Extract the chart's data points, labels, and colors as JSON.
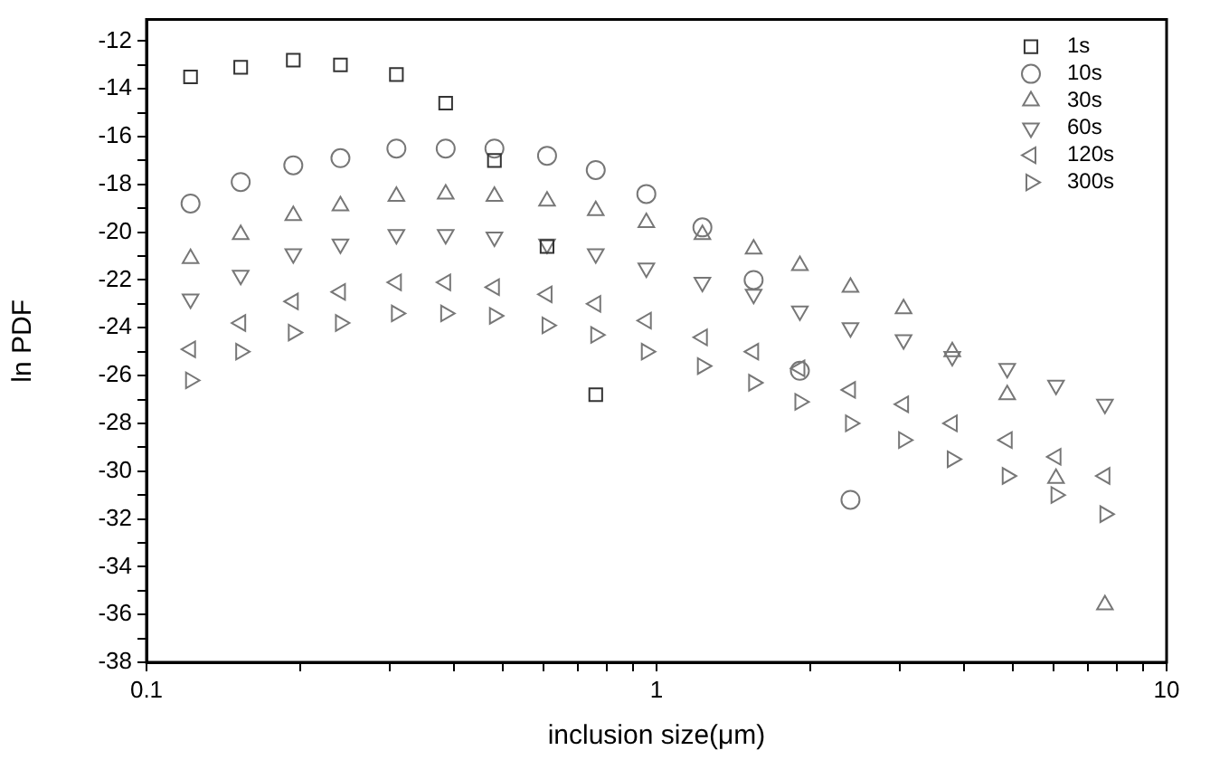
{
  "chart_data": {
    "type": "scatter",
    "xlabel": "inclusion size(μm)",
    "ylabel": "ln PDF",
    "log": "x",
    "grid": false,
    "legend": "top right",
    "xlim": [
      0.1,
      10
    ],
    "xticks": [
      0.1,
      {
        "value": 0.2,
        "label": null
      },
      {
        "value": 0.3,
        "label": null
      },
      {
        "value": 0.4,
        "label": null
      },
      {
        "value": 0.5,
        "label": null
      },
      {
        "value": 0.6,
        "label": null
      },
      {
        "value": 0.7,
        "label": null
      },
      {
        "value": 0.8,
        "label": null
      },
      {
        "value": 0.9,
        "label": null
      },
      1,
      {
        "value": 2,
        "label": null
      },
      {
        "value": 3,
        "label": null
      },
      {
        "value": 4,
        "label": null
      },
      {
        "value": 5,
        "label": null
      },
      {
        "value": 6,
        "label": null
      },
      {
        "value": 7,
        "label": null
      },
      {
        "value": 8,
        "label": null
      },
      {
        "value": 9,
        "label": null
      },
      10
    ],
    "ylim": [
      -38,
      -11.1
    ],
    "yticks": [
      -12,
      {
        "value": -13,
        "label": null
      },
      -14,
      {
        "value": -15,
        "label": null
      },
      -16,
      {
        "value": -17,
        "label": null
      },
      -18,
      {
        "value": -19,
        "label": null
      },
      -20,
      {
        "value": -21,
        "label": null
      },
      -22,
      {
        "value": -23,
        "label": null
      },
      -24,
      {
        "value": -25,
        "label": null
      },
      -26,
      {
        "value": -27,
        "label": null
      },
      -28,
      {
        "value": -29,
        "label": null
      },
      -30,
      {
        "value": -31,
        "label": null
      },
      -32,
      {
        "value": -33,
        "label": null
      },
      -34,
      {
        "value": -35,
        "label": null
      },
      -36,
      {
        "value": -37,
        "label": null
      },
      -38
    ],
    "series": [
      {
        "name": "1s",
        "color": "#333333",
        "marker": "square",
        "x": [
          0.122,
          0.153,
          0.194,
          0.24,
          0.309,
          0.386,
          0.481,
          0.61,
          0.76
        ],
        "values": [
          -13.5,
          -13.1,
          -12.8,
          -13.0,
          -13.4,
          -14.6,
          -17.0,
          -20.6,
          -26.8
        ]
      },
      {
        "name": "10s",
        "color": "#777777",
        "marker": "circle",
        "x": [
          0.122,
          0.153,
          0.194,
          0.24,
          0.309,
          0.386,
          0.481,
          0.61,
          0.76,
          0.955,
          1.23,
          1.55,
          1.91,
          2.4
        ],
        "values": [
          -18.8,
          -17.9,
          -17.2,
          -16.9,
          -16.5,
          -16.5,
          -16.5,
          -16.8,
          -17.4,
          -18.4,
          -19.8,
          -22.0,
          -25.8,
          -31.2
        ]
      },
      {
        "name": "30s",
        "color": "#777777",
        "marker": "triangle",
        "x": [
          0.122,
          0.153,
          0.194,
          0.24,
          0.309,
          0.386,
          0.481,
          0.61,
          0.76,
          0.955,
          1.23,
          1.55,
          1.91,
          2.4,
          3.05,
          3.8,
          4.87,
          6.07,
          7.57
        ],
        "values": [
          -21.1,
          -20.1,
          -19.3,
          -18.9,
          -18.5,
          -18.4,
          -18.5,
          -18.7,
          -19.1,
          -19.6,
          -20.1,
          -20.7,
          -21.4,
          -22.3,
          -23.2,
          -25.0,
          -26.8,
          -30.3,
          -35.6
        ]
      },
      {
        "name": "60s",
        "color": "#777777",
        "marker": "triangle-down",
        "x": [
          0.122,
          0.153,
          0.194,
          0.24,
          0.309,
          0.386,
          0.481,
          0.61,
          0.76,
          0.955,
          1.23,
          1.55,
          1.91,
          2.4,
          3.05,
          3.8,
          4.87,
          6.07,
          7.57
        ],
        "values": [
          -22.8,
          -21.8,
          -20.9,
          -20.5,
          -20.1,
          -20.1,
          -20.2,
          -20.5,
          -20.9,
          -21.5,
          -22.1,
          -22.6,
          -23.3,
          -24.0,
          -24.5,
          -25.2,
          -25.7,
          -26.4,
          -27.2
        ]
      },
      {
        "name": "120s",
        "color": "#777777",
        "marker": "triangle-left",
        "x": [
          0.122,
          0.153,
          0.194,
          0.24,
          0.309,
          0.386,
          0.481,
          0.61,
          0.76,
          0.955,
          1.23,
          1.55,
          1.91,
          2.4,
          3.05,
          3.8,
          4.87,
          6.07,
          7.57
        ],
        "values": [
          -24.9,
          -23.8,
          -22.9,
          -22.5,
          -22.1,
          -22.1,
          -22.3,
          -22.6,
          -23.0,
          -23.7,
          -24.4,
          -25.0,
          -25.7,
          -26.6,
          -27.2,
          -28.0,
          -28.7,
          -29.4,
          -30.2
        ]
      },
      {
        "name": "300s",
        "color": "#777777",
        "marker": "triangle-right",
        "x": [
          0.122,
          0.153,
          0.194,
          0.24,
          0.309,
          0.386,
          0.481,
          0.61,
          0.76,
          0.955,
          1.23,
          1.55,
          1.91,
          2.4,
          3.05,
          3.8,
          4.87,
          6.07,
          7.57
        ],
        "values": [
          -26.2,
          -25.0,
          -24.2,
          -23.8,
          -23.4,
          -23.4,
          -23.5,
          -23.9,
          -24.3,
          -25.0,
          -25.6,
          -26.3,
          -27.1,
          -28.0,
          -28.7,
          -29.5,
          -30.2,
          -31.0,
          -31.8
        ]
      }
    ]
  }
}
